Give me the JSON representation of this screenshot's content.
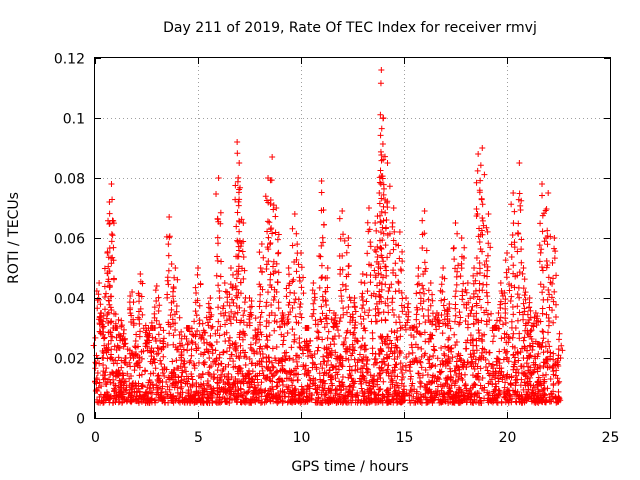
{
  "chart_data": {
    "type": "scatter",
    "title": "Day 211 of 2019, Rate Of TEC Index for receiver rmvj",
    "xlabel": "GPS time / hours",
    "ylabel": "ROTI / TECUs",
    "xlim": [
      0,
      25
    ],
    "ylim": [
      0,
      0.12
    ],
    "xticks": [
      0,
      5,
      10,
      15,
      20,
      25
    ],
    "xtick_labels": [
      "0",
      "5",
      "10",
      "15",
      "20",
      "25"
    ],
    "yticks": [
      0,
      0.02,
      0.04,
      0.06,
      0.08,
      0.1,
      0.12
    ],
    "ytick_labels": [
      "0",
      "0.02",
      "0.04",
      "0.06",
      "0.08",
      "0.1",
      "0.12"
    ],
    "grid": true,
    "marker": "+",
    "series": [
      {
        "name": "ROTI",
        "color": "#ff0000",
        "x": [
          0.0,
          0.2,
          0.3,
          0.4,
          0.6,
          0.7,
          0.8,
          1.0,
          1.2,
          1.5,
          1.8,
          2.0,
          2.2,
          2.5,
          2.8,
          3.0,
          3.3,
          3.6,
          3.9,
          4.2,
          4.5,
          4.8,
          5.0,
          5.3,
          5.6,
          6.0,
          6.3,
          6.6,
          6.9,
          7.0,
          7.2,
          7.5,
          7.8,
          8.1,
          8.4,
          8.6,
          8.8,
          9.1,
          9.4,
          9.7,
          10.0,
          10.3,
          10.6,
          11.0,
          11.3,
          11.6,
          12.0,
          12.3,
          12.6,
          13.0,
          13.3,
          13.6,
          13.8,
          13.9,
          14.0,
          14.2,
          14.5,
          14.8,
          15.1,
          15.4,
          15.7,
          16.0,
          16.3,
          16.6,
          16.9,
          17.2,
          17.5,
          17.8,
          18.1,
          18.4,
          18.6,
          18.8,
          19.1,
          19.4,
          19.7,
          20.0,
          20.3,
          20.6,
          20.8,
          21.1,
          21.4,
          21.7,
          22.0,
          22.3,
          22.6
        ],
        "y": [
          0.012,
          0.045,
          0.035,
          0.02,
          0.055,
          0.072,
          0.078,
          0.03,
          0.015,
          0.02,
          0.042,
          0.018,
          0.048,
          0.025,
          0.03,
          0.044,
          0.015,
          0.067,
          0.05,
          0.022,
          0.03,
          0.018,
          0.05,
          0.025,
          0.04,
          0.08,
          0.045,
          0.05,
          0.092,
          0.085,
          0.065,
          0.04,
          0.025,
          0.058,
          0.08,
          0.087,
          0.07,
          0.035,
          0.05,
          0.068,
          0.055,
          0.03,
          0.045,
          0.079,
          0.05,
          0.035,
          0.069,
          0.06,
          0.04,
          0.048,
          0.07,
          0.065,
          0.075,
          0.116,
          0.1,
          0.085,
          0.07,
          0.062,
          0.04,
          0.03,
          0.05,
          0.069,
          0.045,
          0.035,
          0.05,
          0.038,
          0.065,
          0.06,
          0.045,
          0.05,
          0.088,
          0.09,
          0.068,
          0.03,
          0.045,
          0.055,
          0.075,
          0.085,
          0.05,
          0.04,
          0.035,
          0.078,
          0.075,
          0.06,
          0.02
        ]
      }
    ],
    "noise_floor": {
      "x_range": [
        0.0,
        22.6
      ],
      "typical_range": [
        0.005,
        0.03
      ]
    }
  }
}
